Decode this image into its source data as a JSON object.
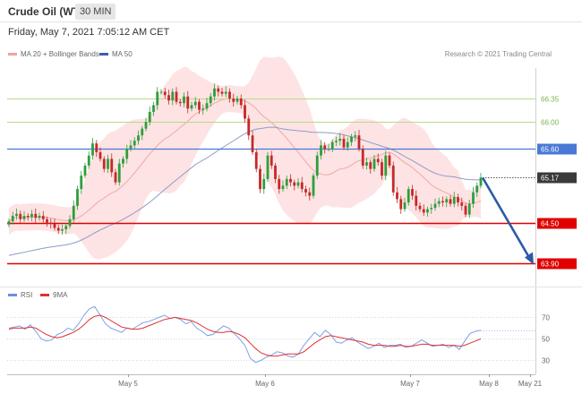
{
  "header": {
    "title": "Crude Oil (WTI)",
    "timeframe": "30 MIN"
  },
  "timestamp": "Friday, May 7, 2021 7:05:12 AM CET",
  "legend": [
    {
      "label": "MA 20 + Bollinger Bands",
      "color": "#f4a0a0"
    },
    {
      "label": "MA 50",
      "color": "#3f5fa8"
    }
  ],
  "credit": "Research © 2021 Trading Central",
  "rsi_legend": [
    {
      "label": "RSI",
      "color": "#6b8fe0"
    },
    {
      "label": "9MA",
      "color": "#e03030"
    }
  ],
  "colors": {
    "up": "#2e9e3c",
    "down": "#c62828",
    "bb_fill": "#fde3e3",
    "ma20": "#f0a8a8",
    "ma50": "#8c9cc8",
    "support": "#e00000",
    "resistance": "#4a78d6",
    "fib": "#b8d98a",
    "arrow": "#2d5aa6"
  },
  "chart_data": {
    "type": "candlestick",
    "x_labels": [
      "May 5",
      "May 6",
      "May 7",
      "May 8",
      "May 21"
    ],
    "ylim": [
      63.6,
      66.75
    ],
    "levels": [
      {
        "value": 66.35,
        "label": "66.35",
        "kind": "fib"
      },
      {
        "value": 66.0,
        "label": "66.00",
        "kind": "fib"
      },
      {
        "value": 65.6,
        "label": "65.60",
        "kind": "resistance"
      },
      {
        "value": 65.17,
        "label": "65.17",
        "kind": "current"
      },
      {
        "value": 64.5,
        "label": "64.50",
        "kind": "support"
      },
      {
        "value": 63.9,
        "label": "63.90",
        "kind": "support"
      }
    ],
    "projection": {
      "from": 65.17,
      "to": 63.9
    },
    "closes": [
      64.52,
      64.6,
      64.63,
      64.55,
      64.6,
      64.58,
      64.63,
      64.57,
      64.6,
      64.55,
      64.5,
      64.48,
      64.42,
      64.38,
      64.4,
      64.45,
      64.55,
      64.75,
      65.0,
      65.2,
      65.35,
      65.5,
      65.68,
      65.55,
      65.45,
      65.3,
      65.45,
      65.25,
      65.1,
      65.38,
      65.45,
      65.6,
      65.65,
      65.72,
      65.8,
      65.9,
      66.0,
      66.15,
      66.25,
      66.45,
      66.45,
      66.4,
      66.32,
      66.45,
      66.3,
      66.28,
      66.38,
      66.2,
      66.25,
      66.3,
      66.18,
      66.2,
      66.28,
      66.38,
      66.5,
      66.45,
      66.42,
      66.45,
      66.35,
      66.3,
      66.35,
      66.25,
      66.05,
      65.8,
      65.55,
      65.3,
      65.0,
      65.15,
      65.5,
      65.35,
      65.15,
      65.0,
      65.05,
      65.15,
      65.1,
      65.05,
      65.1,
      65.0,
      64.95,
      64.9,
      65.2,
      65.5,
      65.65,
      65.6,
      65.6,
      65.7,
      65.72,
      65.75,
      65.62,
      65.7,
      65.78,
      65.8,
      65.6,
      65.35,
      65.4,
      65.3,
      65.45,
      65.4,
      65.2,
      65.5,
      65.35,
      64.95,
      64.85,
      64.7,
      64.8,
      65.0,
      64.9,
      64.75,
      64.7,
      64.65,
      64.7,
      64.72,
      64.78,
      64.82,
      64.8,
      64.85,
      64.78,
      64.88,
      64.8,
      64.75,
      64.62,
      64.78,
      64.95,
      65.05,
      65.17
    ],
    "rsi": {
      "ylim": [
        22,
        82
      ],
      "levels": [
        70,
        50,
        30
      ],
      "rsi": [
        60,
        61,
        62,
        59,
        63,
        57,
        50,
        48,
        49,
        54,
        56,
        60,
        58,
        64,
        72,
        78,
        80,
        72,
        64,
        60,
        58,
        56,
        60,
        59,
        62,
        65,
        66,
        68,
        70,
        72,
        69,
        70,
        68,
        64,
        66,
        60,
        57,
        53,
        54,
        58,
        62,
        60,
        55,
        50,
        44,
        32,
        28,
        30,
        33,
        35,
        38,
        37,
        34,
        33,
        36,
        44,
        50,
        56,
        52,
        58,
        54,
        47,
        46,
        49,
        51,
        47,
        44,
        41,
        43,
        46,
        42,
        44,
        44,
        45,
        42,
        43,
        46,
        49,
        46,
        43,
        44,
        45,
        42,
        44,
        40,
        48,
        55,
        57,
        58
      ],
      "ma9": [
        59,
        60,
        60,
        60,
        61,
        60,
        57,
        54,
        52,
        51,
        52,
        54,
        56,
        59,
        63,
        68,
        71,
        72,
        70,
        67,
        64,
        61,
        60,
        59,
        59,
        60,
        62,
        64,
        66,
        68,
        69,
        70,
        69,
        68,
        67,
        65,
        62,
        59,
        57,
        56,
        56,
        57,
        56,
        54,
        51,
        46,
        41,
        37,
        35,
        34,
        34,
        35,
        36,
        36,
        36,
        38,
        42,
        46,
        49,
        52,
        53,
        52,
        51,
        50,
        49,
        48,
        47,
        45,
        44,
        44,
        44,
        43,
        43,
        44,
        43,
        43,
        44,
        45,
        45,
        44,
        44,
        44,
        44,
        44,
        43,
        44,
        46,
        48,
        50
      ]
    }
  }
}
